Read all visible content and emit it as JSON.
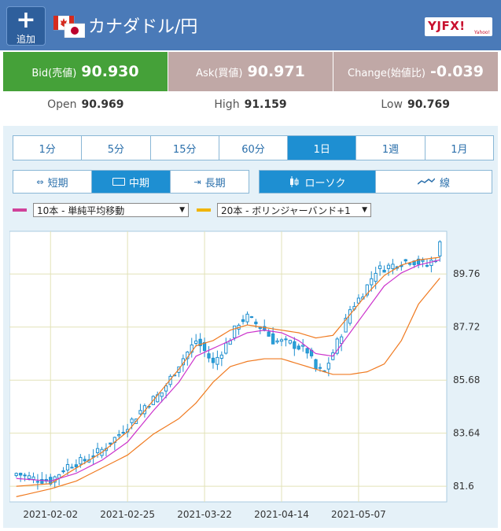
{
  "header": {
    "add_label": "追加",
    "add_symbol": "+",
    "title": "カナダドル/円",
    "logo_text": "YJFX!",
    "logo_sub": "Yahoo!"
  },
  "quotes": {
    "bid_label": "Bid(売値)",
    "bid": "90.930",
    "ask_label": "Ask(買値)",
    "ask": "90.971",
    "change_label": "Change(始値比)",
    "change": "-0.039",
    "open_label": "Open",
    "open": "90.969",
    "high_label": "High",
    "high": "91.159",
    "low_label": "Low",
    "low": "90.769"
  },
  "timeframes": [
    "1分",
    "5分",
    "15分",
    "60分",
    "1日",
    "1週",
    "1月"
  ],
  "timeframe_selected": "1日",
  "terms": [
    "短期",
    "中期",
    "長期"
  ],
  "term_selected": "中期",
  "chart_types": [
    "ローソク",
    "線"
  ],
  "chart_type_selected": "ローソク",
  "indicators": {
    "ind1": {
      "label": "10本 - 単純平均移動",
      "color": "#d0429a"
    },
    "ind2": {
      "label": "20本 - ボリンジャーバンド+1",
      "color": "#f0b400"
    }
  },
  "colors": {
    "up": "#2aa3d8",
    "down": "#2aa3d8",
    "ma": "#cc33cc",
    "bb": "#f07a20"
  },
  "chart_data": {
    "type": "candlestick",
    "ytick_labels": [
      "81.6",
      "83.64",
      "85.68",
      "87.72",
      "89.76"
    ],
    "ylim": [
      81.0,
      91.4
    ],
    "xtick_labels": [
      "2021-02-02",
      "2021-02-25",
      "2021-03-22",
      "2021-04-14",
      "2021-05-07"
    ],
    "xtick_indices": [
      8,
      26,
      44,
      62,
      80
    ],
    "n": 100,
    "close_anchors": [
      [
        0,
        82.1
      ],
      [
        4,
        81.9
      ],
      [
        8,
        81.8
      ],
      [
        12,
        82.4
      ],
      [
        16,
        82.6
      ],
      [
        20,
        83.0
      ],
      [
        24,
        83.6
      ],
      [
        28,
        84.3
      ],
      [
        30,
        84.7
      ],
      [
        34,
        85.2
      ],
      [
        38,
        86.3
      ],
      [
        42,
        87.2
      ],
      [
        44,
        86.8
      ],
      [
        46,
        86.3
      ],
      [
        50,
        87.3
      ],
      [
        52,
        87.9
      ],
      [
        54,
        88.1
      ],
      [
        58,
        87.6
      ],
      [
        60,
        87.2
      ],
      [
        64,
        87.1
      ],
      [
        68,
        86.8
      ],
      [
        70,
        86.1
      ],
      [
        72,
        86.0
      ],
      [
        76,
        87.5
      ],
      [
        78,
        88.4
      ],
      [
        80,
        88.8
      ],
      [
        82,
        89.3
      ],
      [
        84,
        89.9
      ],
      [
        88,
        90.1
      ],
      [
        92,
        90.3
      ],
      [
        96,
        90.1
      ],
      [
        98,
        90.4
      ],
      [
        99,
        90.9
      ]
    ],
    "ma_anchors": [
      [
        0,
        81.9
      ],
      [
        8,
        81.8
      ],
      [
        14,
        82.1
      ],
      [
        20,
        82.6
      ],
      [
        26,
        83.3
      ],
      [
        32,
        84.5
      ],
      [
        38,
        85.6
      ],
      [
        42,
        86.6
      ],
      [
        46,
        86.9
      ],
      [
        50,
        87.2
      ],
      [
        54,
        87.5
      ],
      [
        58,
        87.6
      ],
      [
        62,
        87.5
      ],
      [
        66,
        87.2
      ],
      [
        70,
        86.7
      ],
      [
        74,
        86.6
      ],
      [
        78,
        87.5
      ],
      [
        82,
        88.4
      ],
      [
        86,
        89.3
      ],
      [
        90,
        89.8
      ],
      [
        94,
        90.1
      ],
      [
        99,
        90.3
      ]
    ],
    "bb_anchors": [
      [
        0,
        81.2
      ],
      [
        8,
        81.5
      ],
      [
        14,
        81.8
      ],
      [
        20,
        82.3
      ],
      [
        26,
        82.8
      ],
      [
        32,
        83.6
      ],
      [
        38,
        84.2
      ],
      [
        42,
        84.8
      ],
      [
        46,
        85.6
      ],
      [
        50,
        86.2
      ],
      [
        54,
        86.4
      ],
      [
        58,
        86.5
      ],
      [
        62,
        86.5
      ],
      [
        66,
        86.3
      ],
      [
        70,
        86.1
      ],
      [
        74,
        85.9
      ],
      [
        78,
        85.9
      ],
      [
        82,
        86.0
      ],
      [
        86,
        86.3
      ],
      [
        90,
        87.2
      ],
      [
        94,
        88.6
      ],
      [
        99,
        89.6
      ]
    ],
    "ma_upper_anchors": [
      [
        0,
        81.6
      ],
      [
        8,
        81.7
      ],
      [
        14,
        82.3
      ],
      [
        20,
        82.9
      ],
      [
        26,
        83.7
      ],
      [
        32,
        84.9
      ],
      [
        38,
        86.1
      ],
      [
        42,
        87.0
      ],
      [
        46,
        87.2
      ],
      [
        50,
        87.6
      ],
      [
        54,
        87.8
      ],
      [
        58,
        87.7
      ],
      [
        62,
        87.6
      ],
      [
        66,
        87.5
      ],
      [
        70,
        87.3
      ],
      [
        74,
        87.4
      ],
      [
        78,
        88.2
      ],
      [
        82,
        89.0
      ],
      [
        86,
        89.7
      ],
      [
        90,
        90.1
      ],
      [
        94,
        90.3
      ],
      [
        99,
        90.4
      ]
    ]
  }
}
